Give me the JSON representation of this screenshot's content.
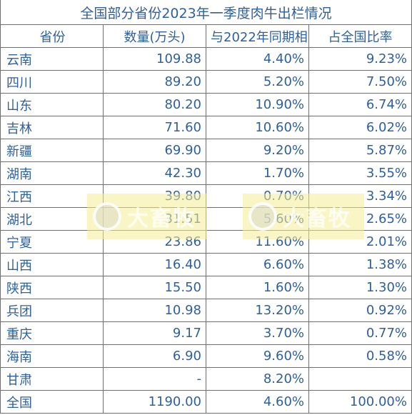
{
  "title": "全国部分省份2023年一季度肉牛出栏情况",
  "headers": [
    "省份",
    "数量(万头)",
    "与2022年同期相比",
    "占全国比率"
  ],
  "rows": [
    [
      "云南",
      "109.88",
      "4.40%",
      "9.23%"
    ],
    [
      "四川",
      "89.20",
      "5.20%",
      "7.50%"
    ],
    [
      "山东",
      "80.20",
      "10.90%",
      "6.74%"
    ],
    [
      "吉林",
      "71.60",
      "10.60%",
      "6.02%"
    ],
    [
      "新疆",
      "69.90",
      "9.20%",
      "5.87%"
    ],
    [
      "湖南",
      "42.30",
      "1.70%",
      "3.55%"
    ],
    [
      "江西",
      "39.80",
      "0.70%",
      "3.34%"
    ],
    [
      "湖北",
      "31.51",
      "5.60%",
      "2.65%"
    ],
    [
      "宁夏",
      "23.86",
      "11.60%",
      "2.01%"
    ],
    [
      "山西",
      "16.40",
      "6.60%",
      "1.38%"
    ],
    [
      "陕西",
      "15.50",
      "1.60%",
      "1.30%"
    ],
    [
      "兵团",
      "10.98",
      "13.20%",
      "0.92%"
    ],
    [
      "重庆",
      "9.17",
      "3.70%",
      "0.77%"
    ],
    [
      "海南",
      "6.90",
      "9.60%",
      "0.58%"
    ],
    [
      "甘肃",
      "-",
      "8.20%",
      ""
    ],
    [
      "全国",
      "1190.00",
      "4.60%",
      "100.00%"
    ]
  ],
  "watermark": {
    "text": "大畜牧",
    "icon": "logo-circle-icon"
  }
}
